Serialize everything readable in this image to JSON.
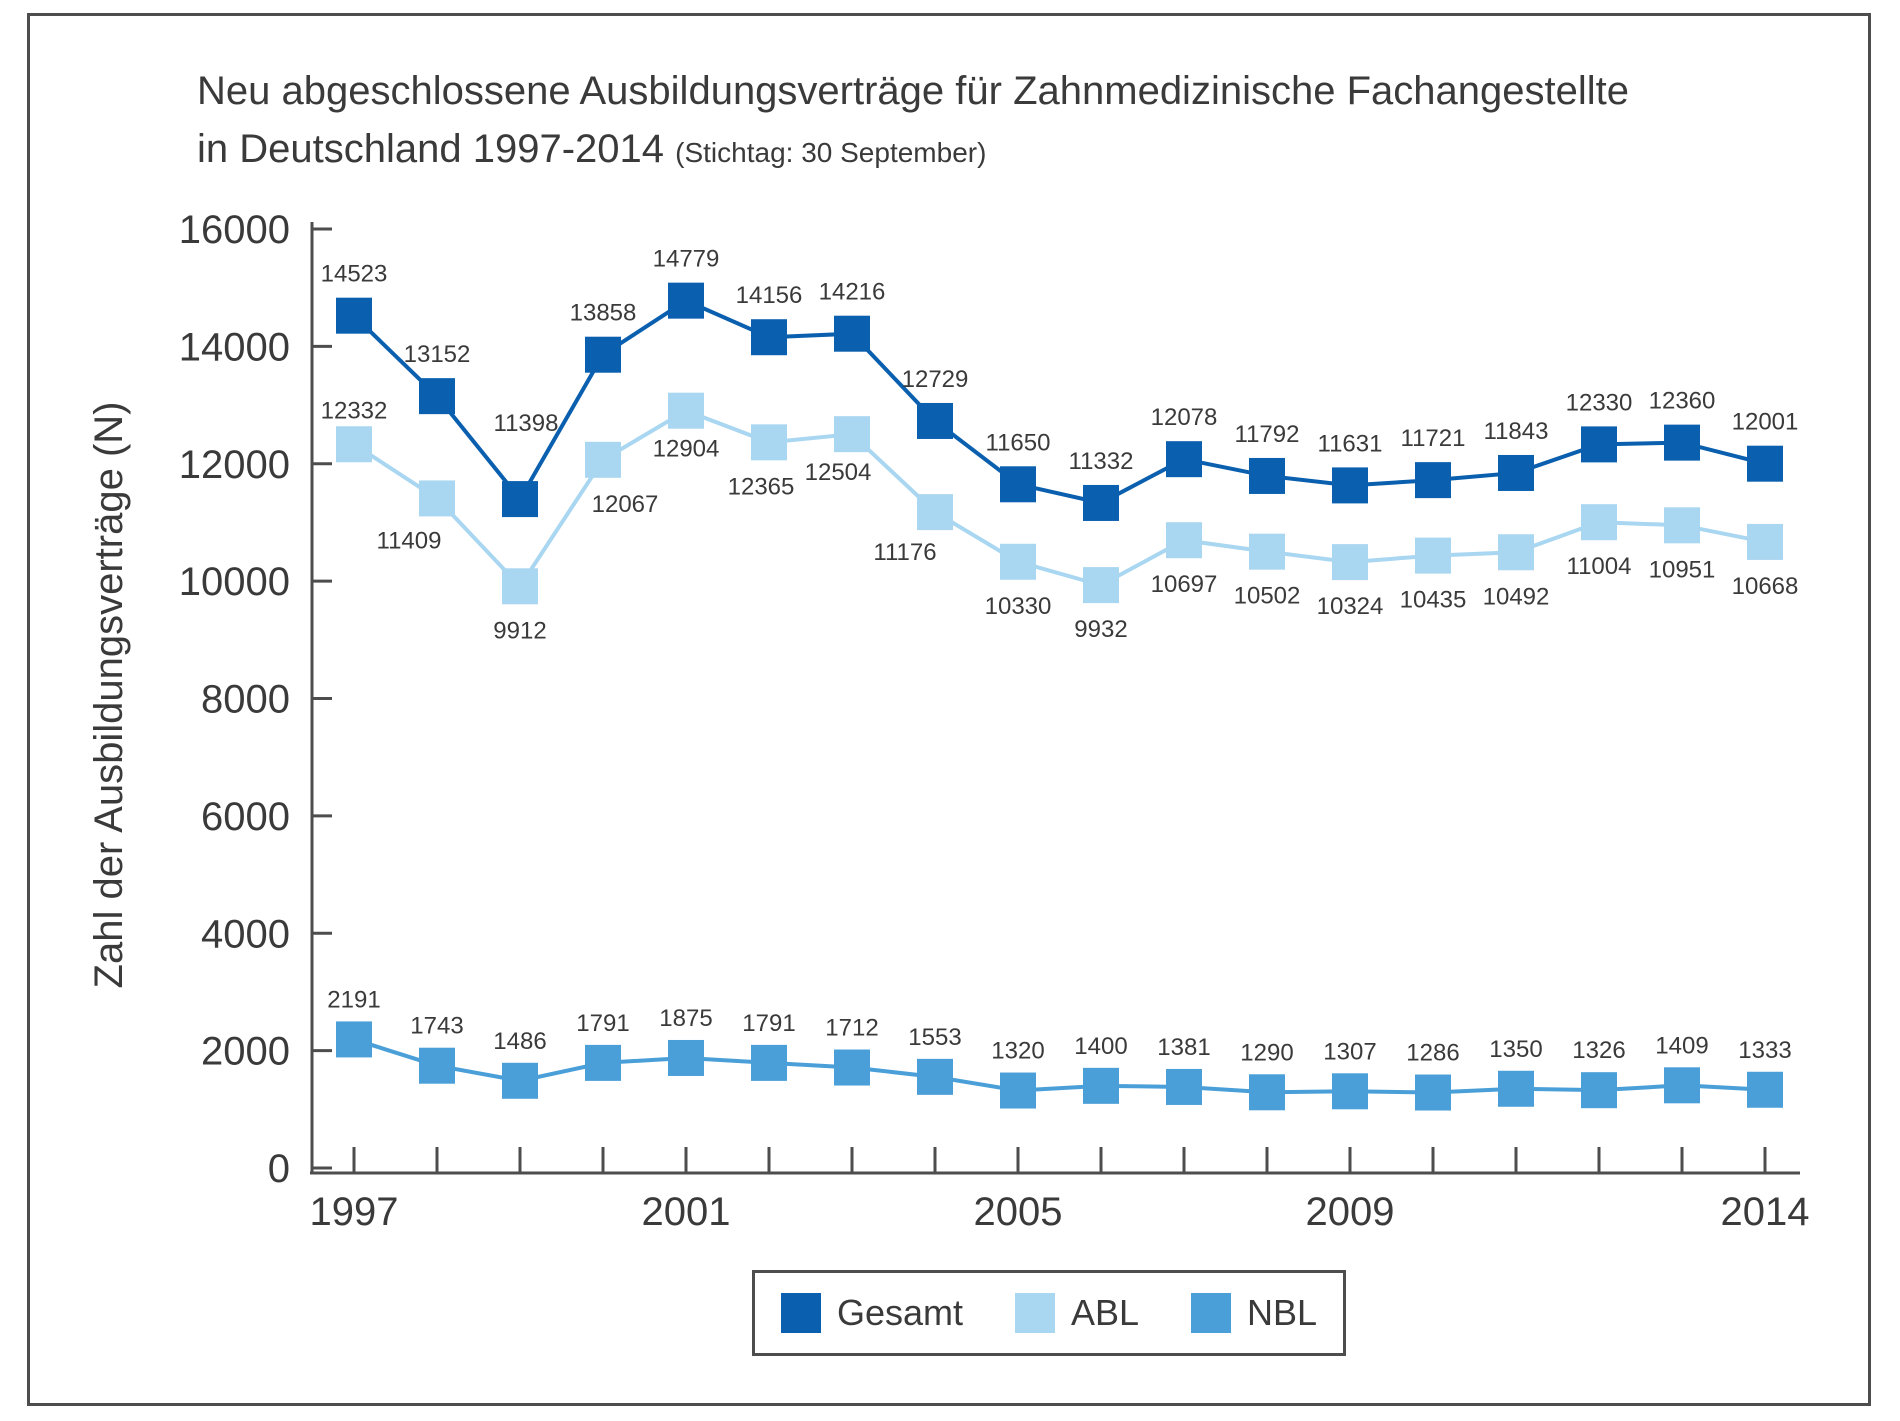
{
  "chart_data": {
    "type": "line",
    "title": "Neu abgeschlossene Ausbildungsverträge für Zahnmedizinische Fachangestellte",
    "title_line2": "in Deutschland 1997-2014",
    "subtitle": "(Stichtag: 30 September)",
    "ylabel": "Zahl der Ausbildungsverträge (N)",
    "xlabel": "",
    "x": [
      1997,
      1998,
      1999,
      2000,
      2001,
      2002,
      2003,
      2004,
      2005,
      2006,
      2007,
      2008,
      2009,
      2010,
      2011,
      2012,
      2013,
      2014
    ],
    "x_tick_labels": [
      "1997",
      "2001",
      "2005",
      "2009",
      "2014"
    ],
    "x_tick_label_years": [
      1997,
      2001,
      2005,
      2009,
      2014
    ],
    "ylim": [
      0,
      16000
    ],
    "y_ticks": [
      0,
      2000,
      4000,
      6000,
      8000,
      10000,
      12000,
      14000,
      16000
    ],
    "y_tick_labels": [
      "0",
      "2000",
      "4000",
      "6000",
      "8000",
      "10000",
      "12000",
      "14000",
      "16000"
    ],
    "grid": false,
    "legend_position": "bottom",
    "series": [
      {
        "name": "Gesamt",
        "color": "#0a5fae",
        "values": [
          14523,
          13152,
          11398,
          13858,
          14779,
          14156,
          14216,
          12729,
          11650,
          11332,
          12078,
          11792,
          11631,
          11721,
          11843,
          12330,
          12360,
          12001
        ],
        "labels": [
          "14523",
          "13152",
          "11398",
          "13858",
          "14779",
          "14156",
          "14216",
          "12729",
          "11650",
          "11332",
          "12078",
          "11792",
          "11631",
          "11721",
          "11843",
          "12330",
          "12360",
          "12001"
        ]
      },
      {
        "name": "ABL",
        "color": "#a9d6f0",
        "values": [
          12332,
          11409,
          9912,
          12067,
          12904,
          12365,
          12504,
          11176,
          10330,
          9932,
          10697,
          10502,
          10324,
          10435,
          10492,
          11004,
          10951,
          10668
        ],
        "labels": [
          "12332",
          "11409",
          "9912",
          "12067",
          "12904",
          "12365",
          "12504",
          "11176",
          "10330",
          "9932",
          "10697",
          "10502",
          "10324",
          "10435",
          "10492",
          "11004",
          "10951",
          "10668"
        ]
      },
      {
        "name": "NBL",
        "color": "#4a9fd8",
        "values": [
          2191,
          1743,
          1486,
          1791,
          1875,
          1791,
          1712,
          1553,
          1320,
          1400,
          1381,
          1290,
          1307,
          1286,
          1350,
          1326,
          1409,
          1333
        ],
        "labels": [
          "2191",
          "1743",
          "1486",
          "1791",
          "1875",
          "1791",
          "1712",
          "1553",
          "1320",
          "1400",
          "1381",
          "1290",
          "1307",
          "1286",
          "1350",
          "1326",
          "1409",
          "1333"
        ]
      }
    ]
  }
}
